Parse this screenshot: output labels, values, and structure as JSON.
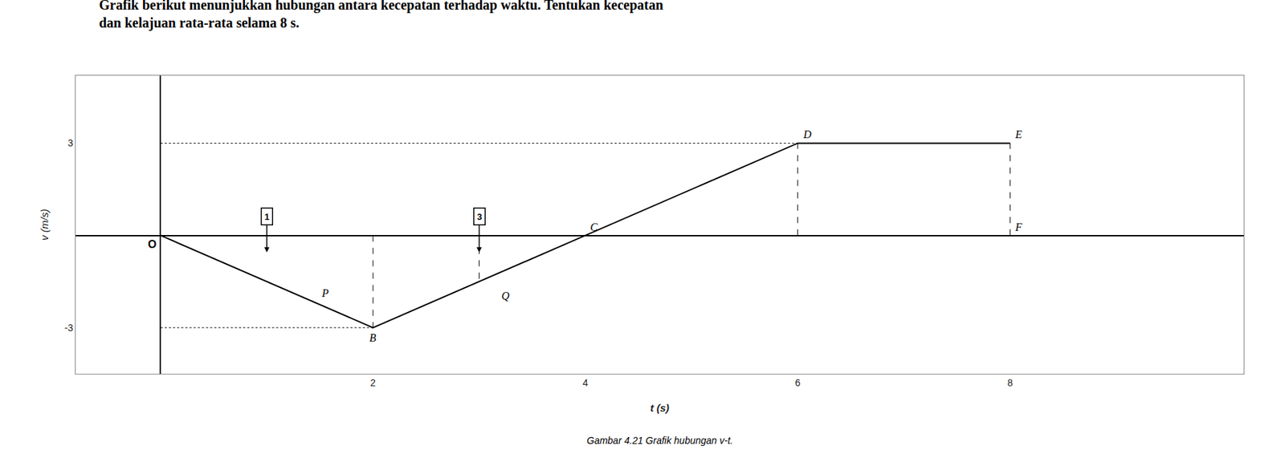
{
  "chart_data": {
    "type": "line",
    "title": "Grafik berikut menunjukkan hubungan antara kecepatan terhadap waktu. Tentukan kecepatan\ndan kelajuan rata-rata selama 8 s.",
    "x": [
      0,
      2,
      4,
      6,
      8
    ],
    "values": [
      0,
      -3,
      0,
      3,
      3
    ],
    "color": "black",
    "xlabel": "t (s)",
    "ylabel": "v (m/s)",
    "xlim": [
      -0.8,
      10.2
    ],
    "ylim": [
      -4.5,
      5.2
    ],
    "xticks": [
      2,
      4,
      6,
      8
    ],
    "yticks": [
      -3,
      3
    ],
    "grid": false,
    "caption": "Gambar 4.21 Grafik hubungan v-t.",
    "guides": [
      {
        "x": [
          0,
          6
        ],
        "y": [
          3,
          3
        ],
        "line_style": "dotted"
      },
      {
        "x": [
          0,
          2
        ],
        "y": [
          -3,
          -3
        ],
        "line_style": "dotted"
      },
      {
        "x": [
          2,
          2
        ],
        "y": [
          0,
          -3
        ],
        "line_style": "dashed"
      },
      {
        "x": [
          3,
          3
        ],
        "y": [
          0,
          -1.5
        ],
        "line_style": "dashed"
      },
      {
        "x": [
          6,
          6
        ],
        "y": [
          0,
          3
        ],
        "line_style": "dashed"
      },
      {
        "x": [
          8,
          8
        ],
        "y": [
          0,
          3
        ],
        "line_style": "dashed"
      }
    ],
    "annotations": [
      {
        "text": "O",
        "x": 0,
        "y": 0
      },
      {
        "text": "D",
        "x": 6,
        "y": 3
      },
      {
        "text": "E",
        "x": 8,
        "y": 3
      },
      {
        "text": "C",
        "x": 4,
        "y": 0
      },
      {
        "text": "B",
        "x": 2,
        "y": -3
      },
      {
        "text": "F",
        "x": 8,
        "y": 0
      },
      {
        "text": "P",
        "x": 1.55,
        "y": -1.55
      },
      {
        "text": "Q",
        "x": 3.25,
        "y": -1.65
      },
      {
        "text": "1",
        "x": 1,
        "y": -0.55,
        "marker": "circle"
      },
      {
        "text": "3",
        "x": 3,
        "y": -0.55,
        "marker": "circle"
      }
    ]
  }
}
